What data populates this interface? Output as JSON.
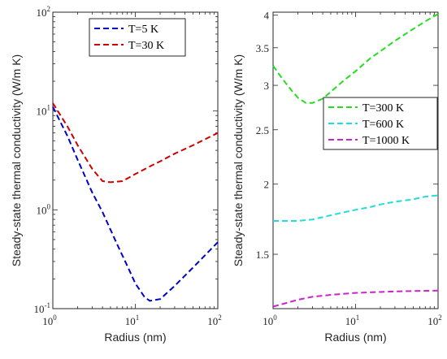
{
  "chart_data": [
    {
      "type": "line",
      "xlabel": "Radius (nm)",
      "ylabel": "Steady-state thermal conductivity (W/m K)",
      "xscale": "log",
      "yscale": "log",
      "xlim": [
        1,
        100
      ],
      "ylim": [
        0.1,
        100
      ],
      "xticks": [
        {
          "base": "10",
          "exp": "0",
          "value": 1
        },
        {
          "base": "10",
          "exp": "1",
          "value": 10
        },
        {
          "base": "10",
          "exp": "2",
          "value": 100
        }
      ],
      "yticks": [
        {
          "base": "10",
          "exp": "-1",
          "value": 0.1
        },
        {
          "base": "10",
          "exp": "0",
          "value": 1
        },
        {
          "base": "10",
          "exp": "1",
          "value": 10
        },
        {
          "base": "10",
          "exp": "2",
          "value": 100
        }
      ],
      "legend_position": "top-right",
      "series": [
        {
          "name": "T=5 K",
          "color": "#0000cc",
          "x": [
            1,
            1.5,
            2,
            3,
            4,
            6,
            8,
            10,
            13,
            15,
            20,
            30,
            50,
            100
          ],
          "y": [
            11,
            5.6,
            3.2,
            1.5,
            0.95,
            0.45,
            0.27,
            0.18,
            0.13,
            0.12,
            0.125,
            0.17,
            0.26,
            0.47
          ]
        },
        {
          "name": "T=30 K",
          "color": "#cc0000",
          "x": [
            1,
            1.5,
            2,
            3,
            4,
            5,
            7,
            10,
            15,
            20,
            30,
            50,
            100
          ],
          "y": [
            12,
            7,
            4.5,
            2.6,
            1.95,
            1.9,
            1.95,
            2.3,
            2.75,
            3.1,
            3.7,
            4.5,
            6.0
          ]
        }
      ]
    },
    {
      "type": "line",
      "xlabel": "Radius (nm)",
      "ylabel": "Steady-state thermal conductivity (W/m K)",
      "xscale": "log",
      "yscale": "log",
      "xlim": [
        1,
        100
      ],
      "ylim": [
        1.2,
        4.05
      ],
      "xticks": [
        {
          "base": "10",
          "exp": "0",
          "value": 1
        },
        {
          "base": "10",
          "exp": "1",
          "value": 10
        },
        {
          "base": "10",
          "exp": "2",
          "value": 100
        }
      ],
      "yticks": [
        {
          "label": "1.5",
          "value": 1.5
        },
        {
          "label": "2",
          "value": 2
        },
        {
          "label": "2.5",
          "value": 2.5
        },
        {
          "label": "3",
          "value": 3
        },
        {
          "label": "3.5",
          "value": 3.5
        },
        {
          "label": "4",
          "value": 4
        }
      ],
      "legend_position": "right",
      "series": [
        {
          "name": "T=300 K",
          "color": "#22dd22",
          "x": [
            1,
            1.3,
            1.7,
            2,
            2.5,
            3,
            4,
            5,
            7,
            10,
            15,
            20,
            30,
            50,
            70,
            100
          ],
          "y": [
            3.25,
            3.08,
            2.93,
            2.85,
            2.79,
            2.79,
            2.84,
            2.92,
            3.05,
            3.18,
            3.35,
            3.45,
            3.6,
            3.78,
            3.9,
            4.02
          ]
        },
        {
          "name": "T=600 K",
          "color": "#22dddd",
          "x": [
            1,
            2,
            3,
            5,
            7,
            10,
            15,
            20,
            30,
            50,
            70,
            100
          ],
          "y": [
            1.72,
            1.72,
            1.73,
            1.76,
            1.78,
            1.8,
            1.82,
            1.84,
            1.86,
            1.88,
            1.9,
            1.91
          ]
        },
        {
          "name": "T=1000 K",
          "color": "#cc22cc",
          "x": [
            1,
            1.5,
            2,
            3,
            5,
            7,
            10,
            15,
            20,
            30,
            50,
            100
          ],
          "y": [
            1.21,
            1.23,
            1.245,
            1.26,
            1.27,
            1.275,
            1.28,
            1.283,
            1.285,
            1.288,
            1.29,
            1.292
          ]
        }
      ]
    }
  ]
}
